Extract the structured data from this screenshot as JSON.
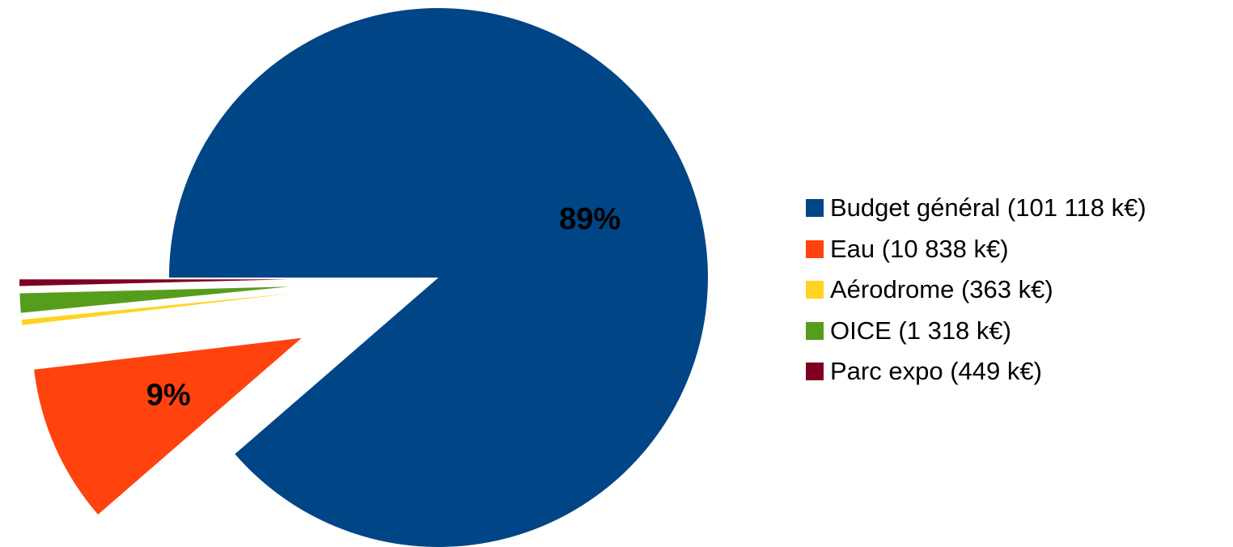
{
  "chart_data": {
    "type": "pie",
    "categories": [
      "Budget général (101 118 k€)",
      "Eau (10 838 k€)",
      "Aérodrome (363 k€)",
      "OICE (1 318 k€)",
      "Parc expo (449 k€)"
    ],
    "values": [
      101118,
      10838,
      363,
      1318,
      449
    ],
    "colors": [
      "#004586",
      "#ff420e",
      "#ffd320",
      "#579d1c",
      "#7e0021"
    ],
    "data_labels": [
      "89%",
      "9%",
      "",
      "",
      ""
    ],
    "exploded": [
      false,
      true,
      true,
      true,
      true
    ],
    "title": "",
    "legend_position": "right"
  }
}
